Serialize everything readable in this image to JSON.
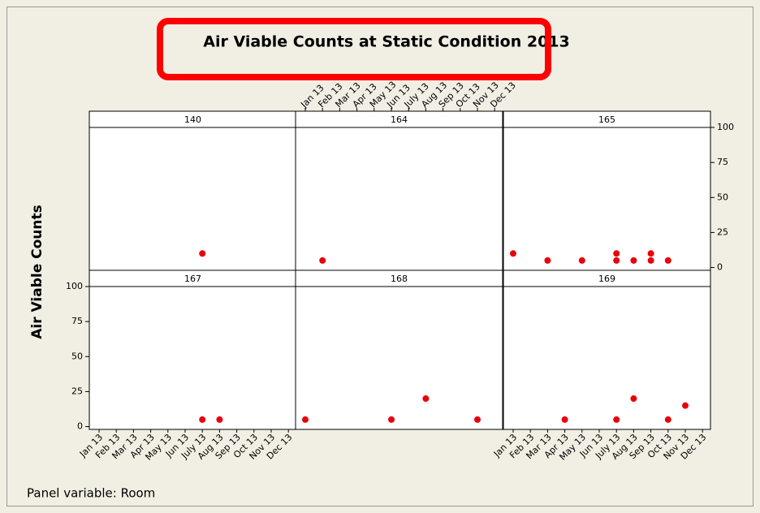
{
  "chart_data": {
    "type": "scatter",
    "title": "Air Viable Counts at Static Condition 2013",
    "y_label": "Air Viable Counts",
    "footnote": "Panel variable: Room",
    "categories": [
      "Jan 13",
      "Feb 13",
      "Mar 13",
      "Apr 13",
      "May 13",
      "Jun 13",
      "July 13",
      "Aug 13",
      "Sep 13",
      "Oct 13",
      "Nov 13",
      "Dec 13"
    ],
    "ylim": [
      -2,
      100
    ],
    "yticks": [
      0,
      25,
      50,
      75,
      100
    ],
    "color": "#e8000b",
    "panels": [
      {
        "name": "140",
        "x": [
          "July 13"
        ],
        "values": [
          10
        ]
      },
      {
        "name": "164",
        "x": [
          "Feb 13"
        ],
        "values": [
          5
        ]
      },
      {
        "name": "165",
        "x": [
          "Jan 13",
          "Mar 13",
          "May 13",
          "July 13",
          "July 13",
          "Aug 13",
          "Sep 13",
          "Sep 13",
          "Oct 13"
        ],
        "values": [
          10,
          5,
          5,
          5,
          10,
          5,
          5,
          10,
          5
        ]
      },
      {
        "name": "167",
        "x": [
          "July 13",
          "Aug 13"
        ],
        "values": [
          5,
          5
        ]
      },
      {
        "name": "168",
        "x": [
          "Jan 13",
          "Jun 13",
          "Aug 13",
          "Nov 13"
        ],
        "values": [
          5,
          5,
          20,
          5
        ]
      },
      {
        "name": "169",
        "x": [
          "Apr 13",
          "July 13",
          "Aug 13",
          "Oct 13",
          "Nov 13"
        ],
        "values": [
          5,
          5,
          20,
          5,
          15
        ]
      }
    ]
  }
}
